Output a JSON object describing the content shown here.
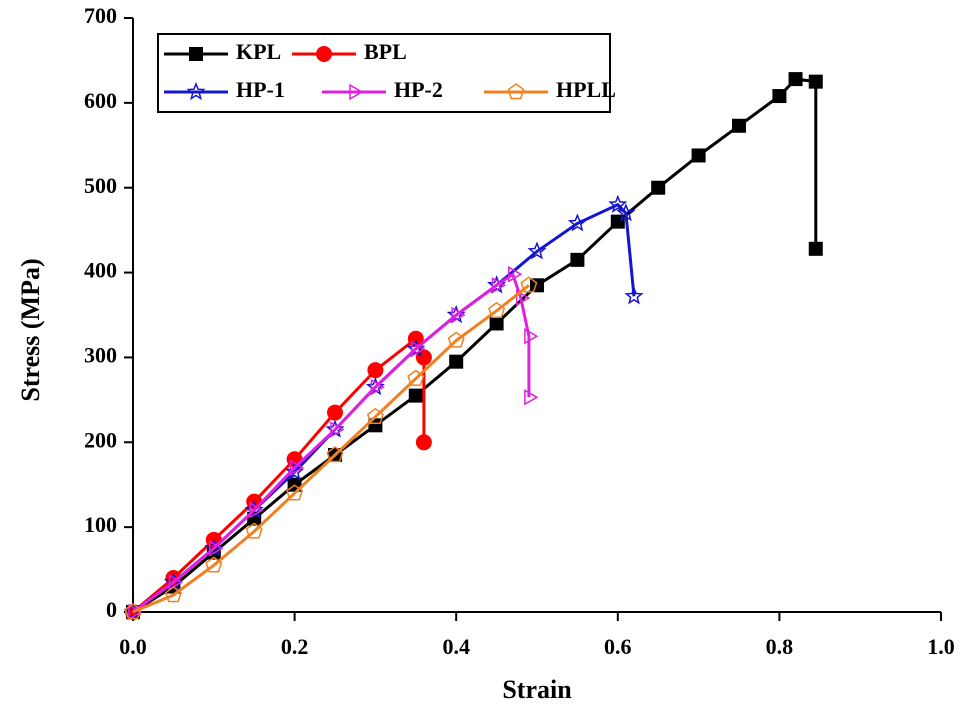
{
  "chart_data": {
    "type": "line",
    "x_label": "Strain",
    "y_label": "Stress (MPa)",
    "xlim": [
      0,
      1
    ],
    "ylim": [
      0,
      700
    ],
    "xticks": [
      {
        "value": 0,
        "label": "0.0"
      },
      0.2,
      0.4,
      0.6,
      0.8,
      {
        "value": 1,
        "label": "1.0"
      }
    ],
    "yticks": [
      0,
      100,
      200,
      300,
      400,
      500,
      600,
      700
    ],
    "legend": "upper left",
    "series": [
      {
        "name": "KPL",
        "color": "#000000",
        "marker": "square",
        "x": [
          0,
          0.05,
          0.1,
          0.15,
          0.2,
          0.25,
          0.3,
          0.35,
          0.4,
          0.45,
          0.5,
          0.55,
          0.6,
          0.65,
          0.7,
          0.75,
          0.8,
          0.82,
          0.845,
          0.845
        ],
        "values": [
          0,
          30,
          70,
          110,
          150,
          185,
          220,
          255,
          295,
          340,
          385,
          415,
          460,
          500,
          538,
          573,
          608,
          628,
          625,
          428
        ]
      },
      {
        "name": "BPL",
        "color": "#ff0000",
        "marker": "circle",
        "x": [
          0,
          0.05,
          0.1,
          0.15,
          0.2,
          0.25,
          0.3,
          0.35,
          0.36,
          0.36
        ],
        "values": [
          0,
          40,
          85,
          130,
          180,
          235,
          285,
          322,
          300,
          200
        ]
      },
      {
        "name": "HP-1",
        "color": "#1515d0",
        "marker": "star",
        "x": [
          0,
          0.05,
          0.1,
          0.15,
          0.2,
          0.25,
          0.3,
          0.35,
          0.4,
          0.45,
          0.5,
          0.55,
          0.6,
          0.61,
          0.62
        ],
        "values": [
          0,
          35,
          75,
          120,
          165,
          215,
          265,
          310,
          350,
          385,
          425,
          458,
          480,
          470,
          372
        ]
      },
      {
        "name": "HP-2",
        "color": "#e020e0",
        "marker": "triangle",
        "x": [
          0,
          0.05,
          0.1,
          0.15,
          0.2,
          0.25,
          0.3,
          0.35,
          0.4,
          0.45,
          0.47,
          0.48,
          0.49,
          0.49
        ],
        "values": [
          0,
          35,
          75,
          120,
          170,
          215,
          265,
          310,
          350,
          385,
          398,
          370,
          325,
          253
        ]
      },
      {
        "name": "HPLL",
        "color": "#f08020",
        "marker": "pentagon",
        "x": [
          0,
          0.05,
          0.1,
          0.15,
          0.2,
          0.25,
          0.3,
          0.35,
          0.4,
          0.45,
          0.49
        ],
        "values": [
          0,
          20,
          55,
          95,
          140,
          185,
          230,
          275,
          320,
          355,
          385
        ]
      }
    ]
  }
}
